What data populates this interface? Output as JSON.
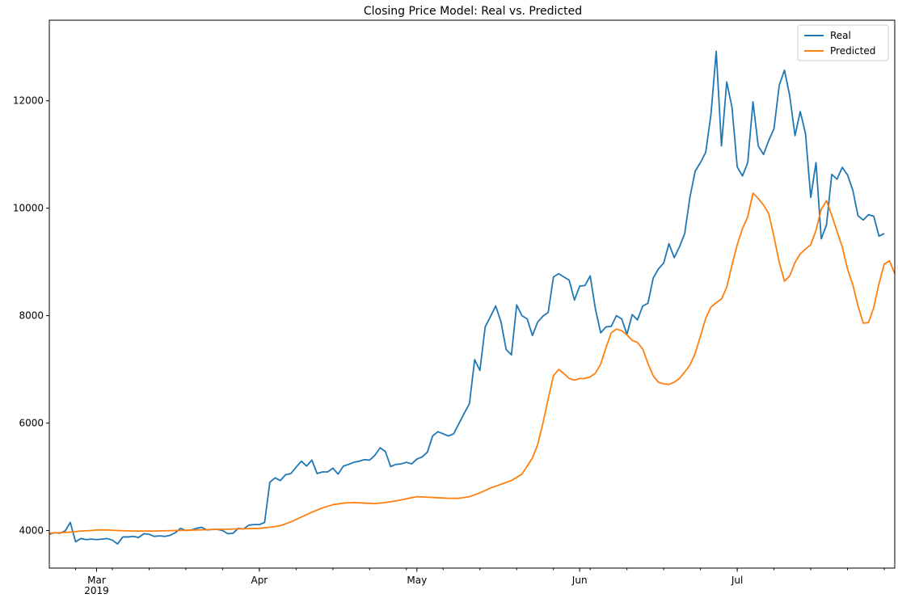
{
  "chart_data": {
    "type": "line",
    "title": "Closing Price Model: Real vs. Predicted",
    "xlabel": "",
    "ylabel": "",
    "x_start": "2019-02-20",
    "x_end": "2019-07-31",
    "xlim": [
      "2019-02-20",
      "2019-07-31"
    ],
    "ylim": [
      3300,
      13500
    ],
    "y_ticks": [
      4000,
      6000,
      8000,
      10000,
      12000
    ],
    "x_ticks": [
      {
        "date": "2019-03-01",
        "label": "Mar",
        "sublabel": "2019"
      },
      {
        "date": "2019-04-01",
        "label": "Apr",
        "sublabel": ""
      },
      {
        "date": "2019-05-01",
        "label": "May",
        "sublabel": ""
      },
      {
        "date": "2019-06-01",
        "label": "Jun",
        "sublabel": ""
      },
      {
        "date": "2019-07-01",
        "label": "Jul",
        "sublabel": ""
      }
    ],
    "grid": false,
    "legend_position": "top-right",
    "series": [
      {
        "name": "Real",
        "color": "#1f77b4",
        "points": [
          [
            "2019-02-20",
            3930
          ],
          [
            "2019-02-21",
            3960
          ],
          [
            "2019-02-22",
            3950
          ],
          [
            "2019-02-23",
            3990
          ],
          [
            "2019-02-24",
            4150
          ],
          [
            "2019-02-25",
            3790
          ],
          [
            "2019-02-26",
            3850
          ],
          [
            "2019-02-27",
            3830
          ],
          [
            "2019-02-28",
            3840
          ],
          [
            "2019-03-01",
            3830
          ],
          [
            "2019-03-02",
            3840
          ],
          [
            "2019-03-03",
            3850
          ],
          [
            "2019-03-04",
            3820
          ],
          [
            "2019-03-05",
            3750
          ],
          [
            "2019-03-06",
            3880
          ],
          [
            "2019-03-07",
            3880
          ],
          [
            "2019-03-08",
            3890
          ],
          [
            "2019-03-09",
            3870
          ],
          [
            "2019-03-10",
            3940
          ],
          [
            "2019-03-11",
            3930
          ],
          [
            "2019-03-12",
            3890
          ],
          [
            "2019-03-13",
            3900
          ],
          [
            "2019-03-14",
            3890
          ],
          [
            "2019-03-15",
            3910
          ],
          [
            "2019-03-16",
            3960
          ],
          [
            "2019-03-17",
            4040
          ],
          [
            "2019-03-18",
            4000
          ],
          [
            "2019-03-19",
            4010
          ],
          [
            "2019-03-20",
            4040
          ],
          [
            "2019-03-21",
            4060
          ],
          [
            "2019-03-22",
            4010
          ],
          [
            "2019-03-23",
            4020
          ],
          [
            "2019-03-24",
            4020
          ],
          [
            "2019-03-25",
            4000
          ],
          [
            "2019-03-26",
            3940
          ],
          [
            "2019-03-27",
            3950
          ],
          [
            "2019-03-28",
            4040
          ],
          [
            "2019-03-29",
            4030
          ],
          [
            "2019-03-30",
            4100
          ],
          [
            "2019-03-31",
            4110
          ],
          [
            "2019-04-01",
            4110
          ],
          [
            "2019-04-02",
            4150
          ],
          [
            "2019-04-03",
            4900
          ],
          [
            "2019-04-04",
            4980
          ],
          [
            "2019-04-05",
            4930
          ],
          [
            "2019-04-06",
            5040
          ],
          [
            "2019-04-07",
            5060
          ],
          [
            "2019-04-08",
            5180
          ],
          [
            "2019-04-09",
            5290
          ],
          [
            "2019-04-10",
            5200
          ],
          [
            "2019-04-11",
            5310
          ],
          [
            "2019-04-12",
            5060
          ],
          [
            "2019-04-13",
            5090
          ],
          [
            "2019-04-14",
            5090
          ],
          [
            "2019-04-15",
            5160
          ],
          [
            "2019-04-16",
            5050
          ],
          [
            "2019-04-17",
            5200
          ],
          [
            "2019-04-18",
            5230
          ],
          [
            "2019-04-19",
            5270
          ],
          [
            "2019-04-20",
            5290
          ],
          [
            "2019-04-21",
            5320
          ],
          [
            "2019-04-22",
            5310
          ],
          [
            "2019-04-23",
            5400
          ],
          [
            "2019-04-24",
            5540
          ],
          [
            "2019-04-25",
            5470
          ],
          [
            "2019-04-26",
            5190
          ],
          [
            "2019-04-27",
            5230
          ],
          [
            "2019-04-28",
            5240
          ],
          [
            "2019-04-29",
            5270
          ],
          [
            "2019-04-30",
            5240
          ],
          [
            "2019-05-01",
            5330
          ],
          [
            "2019-05-02",
            5370
          ],
          [
            "2019-05-03",
            5460
          ],
          [
            "2019-05-04",
            5760
          ],
          [
            "2019-05-05",
            5840
          ],
          [
            "2019-05-06",
            5800
          ],
          [
            "2019-05-07",
            5760
          ],
          [
            "2019-05-08",
            5800
          ],
          [
            "2019-05-09",
            5990
          ],
          [
            "2019-05-10",
            6180
          ],
          [
            "2019-05-11",
            6360
          ],
          [
            "2019-05-12",
            7180
          ],
          [
            "2019-05-13",
            6980
          ],
          [
            "2019-05-14",
            7790
          ],
          [
            "2019-05-15",
            7980
          ],
          [
            "2019-05-16",
            8180
          ],
          [
            "2019-05-17",
            7890
          ],
          [
            "2019-05-18",
            7370
          ],
          [
            "2019-05-19",
            7270
          ],
          [
            "2019-05-20",
            8200
          ],
          [
            "2019-05-21",
            8000
          ],
          [
            "2019-05-22",
            7940
          ],
          [
            "2019-05-23",
            7630
          ],
          [
            "2019-05-24",
            7880
          ],
          [
            "2019-05-25",
            7990
          ],
          [
            "2019-05-26",
            8060
          ],
          [
            "2019-05-27",
            8720
          ],
          [
            "2019-05-28",
            8780
          ],
          [
            "2019-05-29",
            8720
          ],
          [
            "2019-05-30",
            8660
          ],
          [
            "2019-05-31",
            8290
          ],
          [
            "2019-06-01",
            8550
          ],
          [
            "2019-06-02",
            8560
          ],
          [
            "2019-06-03",
            8740
          ],
          [
            "2019-06-04",
            8120
          ],
          [
            "2019-06-05",
            7680
          ],
          [
            "2019-06-06",
            7790
          ],
          [
            "2019-06-07",
            7800
          ],
          [
            "2019-06-08",
            8000
          ],
          [
            "2019-06-09",
            7940
          ],
          [
            "2019-06-10",
            7650
          ],
          [
            "2019-06-11",
            8020
          ],
          [
            "2019-06-12",
            7920
          ],
          [
            "2019-06-13",
            8180
          ],
          [
            "2019-06-14",
            8230
          ],
          [
            "2019-06-15",
            8700
          ],
          [
            "2019-06-16",
            8870
          ],
          [
            "2019-06-17",
            8980
          ],
          [
            "2019-06-18",
            9340
          ],
          [
            "2019-06-19",
            9080
          ],
          [
            "2019-06-20",
            9280
          ],
          [
            "2019-06-21",
            9530
          ],
          [
            "2019-06-22",
            10210
          ],
          [
            "2019-06-23",
            10690
          ],
          [
            "2019-06-24",
            10850
          ],
          [
            "2019-06-25",
            11040
          ],
          [
            "2019-06-26",
            11750
          ],
          [
            "2019-06-27",
            12920
          ],
          [
            "2019-06-28",
            11160
          ],
          [
            "2019-06-29",
            12350
          ],
          [
            "2019-06-30",
            11880
          ],
          [
            "2019-07-01",
            10770
          ],
          [
            "2019-07-02",
            10600
          ],
          [
            "2019-07-03",
            10850
          ],
          [
            "2019-07-04",
            11980
          ],
          [
            "2019-07-05",
            11160
          ],
          [
            "2019-07-06",
            11000
          ],
          [
            "2019-07-07",
            11260
          ],
          [
            "2019-07-08",
            11480
          ],
          [
            "2019-07-09",
            12290
          ],
          [
            "2019-07-10",
            12570
          ],
          [
            "2019-07-11",
            12090
          ],
          [
            "2019-07-12",
            11350
          ],
          [
            "2019-07-13",
            11800
          ],
          [
            "2019-07-14",
            11390
          ],
          [
            "2019-07-15",
            10200
          ],
          [
            "2019-07-16",
            10850
          ],
          [
            "2019-07-17",
            9430
          ],
          [
            "2019-07-18",
            9690
          ],
          [
            "2019-07-19",
            10630
          ],
          [
            "2019-07-20",
            10540
          ],
          [
            "2019-07-21",
            10760
          ],
          [
            "2019-07-22",
            10620
          ],
          [
            "2019-07-23",
            10340
          ],
          [
            "2019-07-24",
            9860
          ],
          [
            "2019-07-25",
            9780
          ],
          [
            "2019-07-26",
            9880
          ],
          [
            "2019-07-27",
            9850
          ],
          [
            "2019-07-28",
            9480
          ],
          [
            "2019-07-29",
            9530
          ]
        ]
      },
      {
        "name": "Predicted",
        "color": "#ff7f0e",
        "points": [
          [
            "2019-02-20",
            3950
          ],
          [
            "2019-02-22",
            3960
          ],
          [
            "2019-02-24",
            3970
          ],
          [
            "2019-02-26",
            3990
          ],
          [
            "2019-02-28",
            4000
          ],
          [
            "2019-03-01",
            4010
          ],
          [
            "2019-03-03",
            4010
          ],
          [
            "2019-03-05",
            4000
          ],
          [
            "2019-03-08",
            3990
          ],
          [
            "2019-03-12",
            3990
          ],
          [
            "2019-03-16",
            4000
          ],
          [
            "2019-03-20",
            4010
          ],
          [
            "2019-03-24",
            4020
          ],
          [
            "2019-03-28",
            4030
          ],
          [
            "2019-04-01",
            4040
          ],
          [
            "2019-04-03",
            4060
          ],
          [
            "2019-04-05",
            4090
          ],
          [
            "2019-04-07",
            4160
          ],
          [
            "2019-04-09",
            4250
          ],
          [
            "2019-04-11",
            4340
          ],
          [
            "2019-04-13",
            4420
          ],
          [
            "2019-04-15",
            4480
          ],
          [
            "2019-04-17",
            4510
          ],
          [
            "2019-04-19",
            4520
          ],
          [
            "2019-04-21",
            4510
          ],
          [
            "2019-04-23",
            4500
          ],
          [
            "2019-04-25",
            4520
          ],
          [
            "2019-04-27",
            4550
          ],
          [
            "2019-04-29",
            4590
          ],
          [
            "2019-05-01",
            4630
          ],
          [
            "2019-05-03",
            4620
          ],
          [
            "2019-05-05",
            4610
          ],
          [
            "2019-05-07",
            4600
          ],
          [
            "2019-05-09",
            4600
          ],
          [
            "2019-05-11",
            4630
          ],
          [
            "2019-05-13",
            4700
          ],
          [
            "2019-05-15",
            4790
          ],
          [
            "2019-05-17",
            4860
          ],
          [
            "2019-05-19",
            4930
          ],
          [
            "2019-05-21",
            5050
          ],
          [
            "2019-05-22",
            5200
          ],
          [
            "2019-05-23",
            5350
          ],
          [
            "2019-05-24",
            5600
          ],
          [
            "2019-05-25",
            6000
          ],
          [
            "2019-05-26",
            6450
          ],
          [
            "2019-05-27",
            6880
          ],
          [
            "2019-05-28",
            7000
          ],
          [
            "2019-05-29",
            6920
          ],
          [
            "2019-05-30",
            6830
          ],
          [
            "2019-05-31",
            6800
          ],
          [
            "2019-06-01",
            6830
          ],
          [
            "2019-06-02",
            6830
          ],
          [
            "2019-06-03",
            6860
          ],
          [
            "2019-06-04",
            6930
          ],
          [
            "2019-06-05",
            7100
          ],
          [
            "2019-06-06",
            7400
          ],
          [
            "2019-06-07",
            7680
          ],
          [
            "2019-06-08",
            7750
          ],
          [
            "2019-06-09",
            7720
          ],
          [
            "2019-06-10",
            7640
          ],
          [
            "2019-06-11",
            7540
          ],
          [
            "2019-06-12",
            7500
          ],
          [
            "2019-06-13",
            7380
          ],
          [
            "2019-06-14",
            7110
          ],
          [
            "2019-06-15",
            6880
          ],
          [
            "2019-06-16",
            6760
          ],
          [
            "2019-06-17",
            6730
          ],
          [
            "2019-06-18",
            6720
          ],
          [
            "2019-06-19",
            6760
          ],
          [
            "2019-06-20",
            6830
          ],
          [
            "2019-06-21",
            6950
          ],
          [
            "2019-06-22",
            7080
          ],
          [
            "2019-06-23",
            7300
          ],
          [
            "2019-06-24",
            7620
          ],
          [
            "2019-06-25",
            7950
          ],
          [
            "2019-06-26",
            8160
          ],
          [
            "2019-06-27",
            8240
          ],
          [
            "2019-06-28",
            8310
          ],
          [
            "2019-06-29",
            8530
          ],
          [
            "2019-06-30",
            8940
          ],
          [
            "2019-07-01",
            9320
          ],
          [
            "2019-07-02",
            9620
          ],
          [
            "2019-07-03",
            9840
          ],
          [
            "2019-07-04",
            10280
          ],
          [
            "2019-07-05",
            10180
          ],
          [
            "2019-07-06",
            10060
          ],
          [
            "2019-07-07",
            9900
          ],
          [
            "2019-07-08",
            9470
          ],
          [
            "2019-07-09",
            8990
          ],
          [
            "2019-07-10",
            8640
          ],
          [
            "2019-07-11",
            8740
          ],
          [
            "2019-07-12",
            8990
          ],
          [
            "2019-07-13",
            9150
          ],
          [
            "2019-07-14",
            9240
          ],
          [
            "2019-07-15",
            9320
          ],
          [
            "2019-07-16",
            9590
          ],
          [
            "2019-07-17",
            9980
          ],
          [
            "2019-07-18",
            10140
          ],
          [
            "2019-07-19",
            9870
          ],
          [
            "2019-07-20",
            9570
          ],
          [
            "2019-07-21",
            9280
          ],
          [
            "2019-07-22",
            8870
          ],
          [
            "2019-07-23",
            8580
          ],
          [
            "2019-07-24",
            8180
          ],
          [
            "2019-07-25",
            7860
          ],
          [
            "2019-07-26",
            7870
          ],
          [
            "2019-07-27",
            8150
          ],
          [
            "2019-07-28",
            8600
          ],
          [
            "2019-07-29",
            8960
          ],
          [
            "2019-07-30",
            9020
          ],
          [
            "2019-07-31",
            8780
          ]
        ]
      }
    ]
  }
}
